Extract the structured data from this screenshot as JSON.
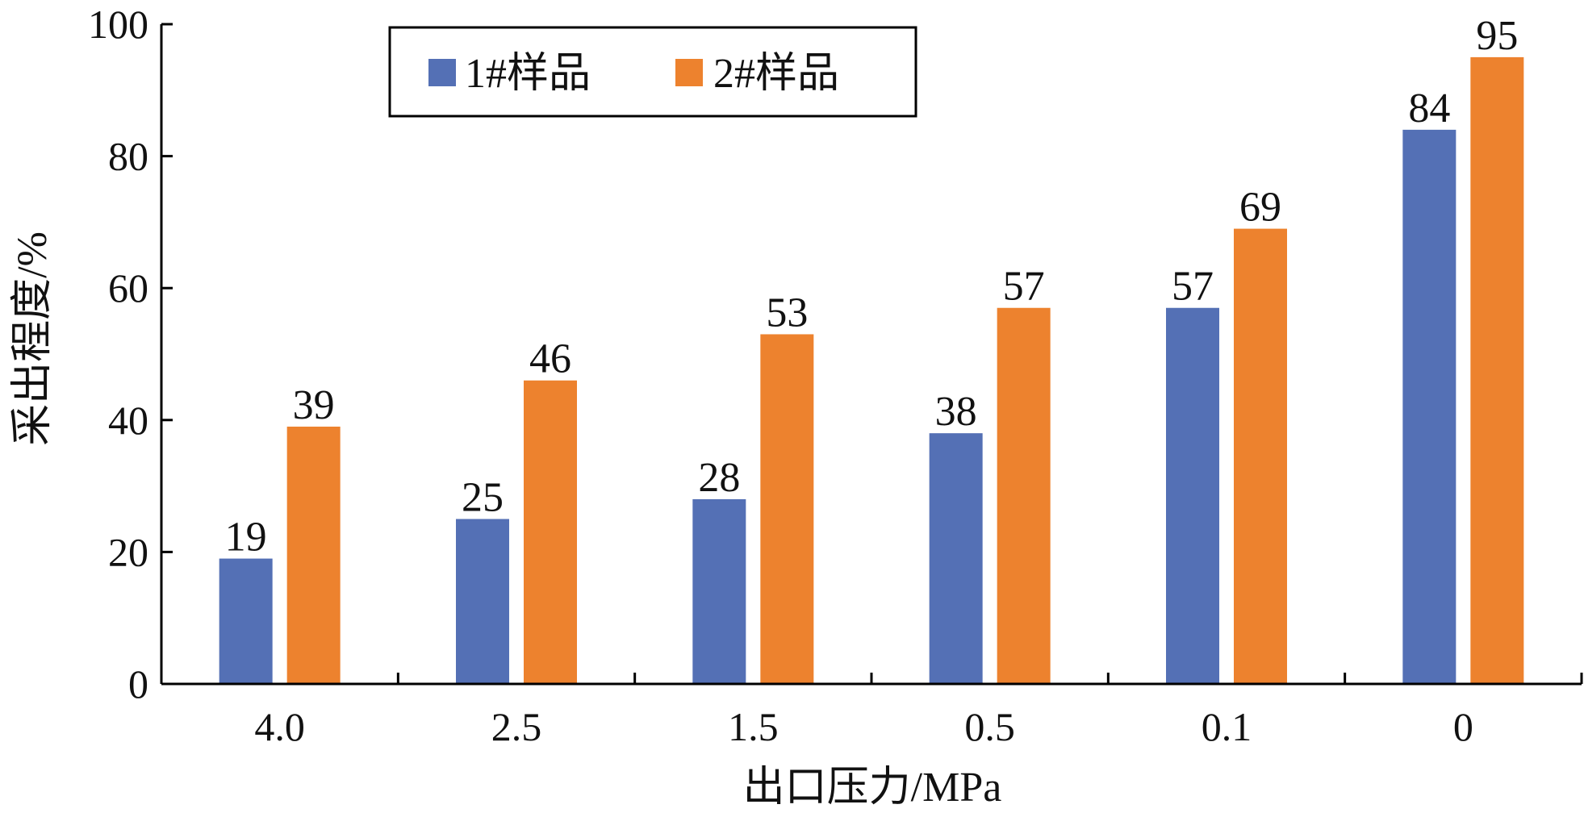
{
  "chart_data": {
    "type": "bar",
    "title": "",
    "xlabel": "出口压力/MPa",
    "ylabel": "采出程度/%",
    "categories": [
      "4.0",
      "2.5",
      "1.5",
      "0.5",
      "0.1",
      "0"
    ],
    "series": [
      {
        "name": "1#样品",
        "color": "#5470B5",
        "values": [
          19,
          25,
          28,
          38,
          57,
          84
        ]
      },
      {
        "name": "2#样品",
        "color": "#ED822E",
        "values": [
          39,
          46,
          53,
          57,
          69,
          95
        ]
      }
    ],
    "data_labels": [
      [
        "19",
        "25",
        "28",
        "38",
        "57",
        "84"
      ],
      [
        "39",
        "46",
        "53",
        "57",
        "69",
        "95"
      ]
    ],
    "ylim": [
      0,
      100
    ],
    "yticks": [
      "0",
      "20",
      "40",
      "60",
      "80",
      "100"
    ],
    "grid": false,
    "legend_placement": "top-left"
  }
}
